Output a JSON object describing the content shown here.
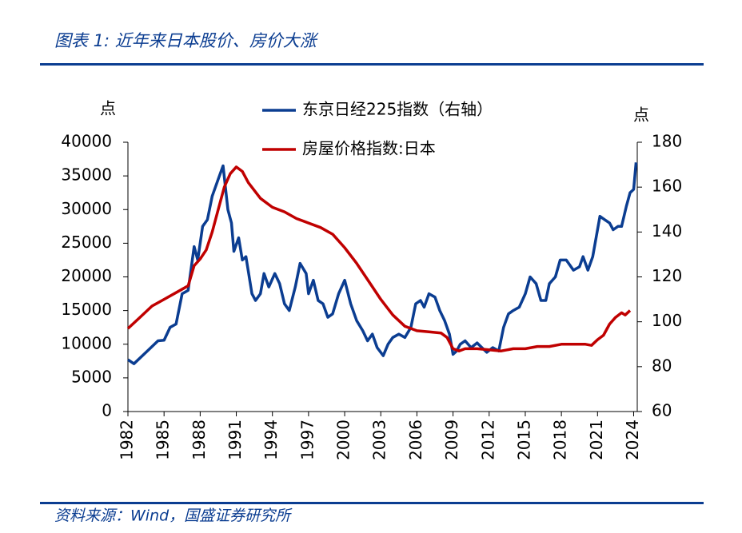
{
  "chart_data": {
    "type": "line",
    "title": "图表 1:  近年来日本股价、房价大涨",
    "source": "资料来源：Wind，国盛证券研究所",
    "y_label": "点",
    "y2_label": "点",
    "xlim": [
      1982,
      2024.3
    ],
    "xticks": [
      1982,
      1985,
      1988,
      1991,
      1994,
      1997,
      2000,
      2003,
      2006,
      2009,
      2012,
      2015,
      2018,
      2021,
      2024
    ],
    "ylim": [
      0,
      40000
    ],
    "yticks": [
      0,
      5000,
      10000,
      15000,
      20000,
      25000,
      30000,
      35000,
      40000
    ],
    "y2lim": [
      60,
      180
    ],
    "y2ticks": [
      60,
      80,
      100,
      120,
      140,
      160,
      180
    ],
    "legend": "top",
    "series": [
      {
        "name": "东京日经225指数（右轴）",
        "color": "#0b3d91",
        "x": [
          1982.0,
          1982.5,
          1983.5,
          1984.5,
          1985.0,
          1985.5,
          1986.0,
          1986.5,
          1987.0,
          1987.5,
          1987.8,
          1988.2,
          1988.6,
          1989.0,
          1989.5,
          1989.9,
          1990.3,
          1990.6,
          1990.8,
          1991.2,
          1991.5,
          1991.8,
          1992.3,
          1992.6,
          1993.0,
          1993.3,
          1993.7,
          1994.2,
          1994.6,
          1995.0,
          1995.4,
          1995.9,
          1996.3,
          1996.8,
          1997.0,
          1997.4,
          1997.8,
          1998.2,
          1998.6,
          1999.0,
          1999.5,
          2000.0,
          2000.5,
          2001.0,
          2001.5,
          2001.9,
          2002.3,
          2002.7,
          2003.2,
          2003.6,
          2004.0,
          2004.5,
          2005.0,
          2005.5,
          2005.9,
          2006.3,
          2006.6,
          2007.0,
          2007.5,
          2007.9,
          2008.3,
          2008.7,
          2009.0,
          2009.3,
          2009.6,
          2010.0,
          2010.5,
          2011.0,
          2011.4,
          2011.8,
          2012.3,
          2012.8,
          2013.2,
          2013.6,
          2014.0,
          2014.5,
          2015.0,
          2015.4,
          2015.9,
          2016.3,
          2016.7,
          2017.0,
          2017.5,
          2017.9,
          2018.4,
          2018.8,
          2019.0,
          2019.5,
          2019.8,
          2020.2,
          2020.6,
          2020.9,
          2021.2,
          2021.6,
          2022.0,
          2022.3,
          2022.7,
          2023.0,
          2023.4,
          2023.7,
          2024.0,
          2024.2
        ],
        "values": [
          7700,
          7100,
          8800,
          10500,
          10600,
          12500,
          13000,
          17500,
          18000,
          24500,
          22500,
          27500,
          28500,
          32000,
          34500,
          36500,
          30000,
          28000,
          23800,
          25800,
          22500,
          23000,
          17500,
          16500,
          17500,
          20500,
          18500,
          20500,
          19000,
          16000,
          15000,
          18500,
          22000,
          20500,
          17500,
          19500,
          16500,
          16000,
          14000,
          14500,
          17500,
          19500,
          16000,
          13500,
          12000,
          10500,
          11500,
          9500,
          8300,
          10000,
          11000,
          11500,
          11000,
          12500,
          16000,
          16500,
          15500,
          17500,
          17000,
          15000,
          13500,
          11500,
          8500,
          9000,
          10000,
          10500,
          9500,
          10200,
          9500,
          8800,
          9500,
          9000,
          12500,
          14500,
          15000,
          15500,
          17500,
          20000,
          19000,
          16500,
          16500,
          19000,
          20000,
          22500,
          22500,
          21500,
          21000,
          21500,
          23000,
          21000,
          23000,
          26000,
          29000,
          28500,
          28000,
          27000,
          27500,
          27500,
          30500,
          32500,
          33000,
          37000
        ]
      },
      {
        "name": "房屋价格指数:日本",
        "color": "#c00000",
        "axis": "y2",
        "x": [
          1982,
          1983,
          1984,
          1985,
          1986,
          1987,
          1987.5,
          1988,
          1988.5,
          1989,
          1989.5,
          1990,
          1990.5,
          1991,
          1991.5,
          1992,
          1993,
          1994,
          1995,
          1996,
          1997,
          1998,
          1999,
          2000,
          2001,
          2002,
          2003,
          2004,
          2005,
          2006,
          2007,
          2008,
          2008.5,
          2009,
          2009.5,
          2010,
          2011,
          2012,
          2013,
          2014,
          2015,
          2016,
          2017,
          2018,
          2019,
          2020,
          2020.5,
          2021,
          2021.5,
          2022,
          2022.5,
          2023,
          2023.3,
          2023.7
        ],
        "values": [
          97,
          102,
          107,
          110,
          113,
          116,
          125,
          128,
          132,
          140,
          150,
          160,
          166,
          169,
          167,
          162,
          155,
          151,
          149,
          146,
          144,
          142,
          139,
          133,
          126,
          118,
          110,
          103,
          98,
          96,
          95.5,
          95,
          93,
          88,
          87,
          88,
          88,
          87.5,
          87,
          88,
          88,
          89,
          89,
          90,
          90,
          90,
          89.5,
          92,
          94,
          99,
          102,
          104,
          103,
          105
        ]
      }
    ]
  }
}
